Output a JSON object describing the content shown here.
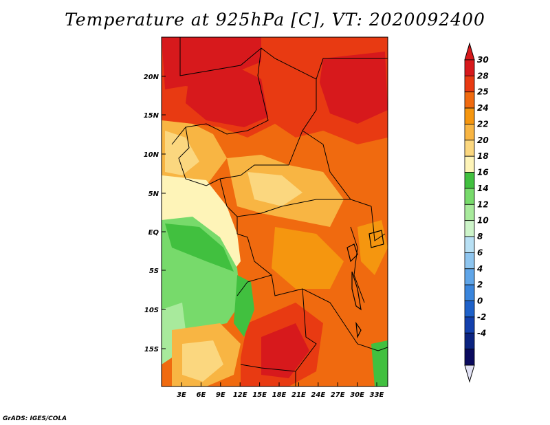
{
  "title": "Temperature at 925hPa [C], VT: 2020092400",
  "credit": "GrADS: IGES/COLA",
  "map": {
    "lat_ticks": [
      "20N",
      "15N",
      "10N",
      "5N",
      "EQ",
      "5S",
      "10S",
      "15S"
    ],
    "lon_ticks": [
      "3E",
      "6E",
      "9E",
      "12E",
      "15E",
      "18E",
      "21E",
      "24E",
      "27E",
      "30E",
      "33E"
    ]
  },
  "colorbar": {
    "labels": [
      "30",
      "28",
      "25",
      "24",
      "22",
      "20",
      "18",
      "16",
      "14",
      "12",
      "10",
      "8",
      "6",
      "4",
      "2",
      "0",
      "-2",
      "-4"
    ],
    "colors": [
      "#d7191c",
      "#e83a12",
      "#f06a0f",
      "#f5960f",
      "#f8b543",
      "#fbd77f",
      "#fef4b8",
      "#41c03f",
      "#77da6b",
      "#a8ea9c",
      "#cdf4c9",
      "#b8e0f4",
      "#8ec5ef",
      "#5fa5e8",
      "#3a85dc",
      "#1e61c9",
      "#1340ad",
      "#0b2380",
      "#0a0a5e"
    ],
    "top_arrow_color": "#d7191c",
    "bottom_arrow_color": "#e2e2f5"
  }
}
